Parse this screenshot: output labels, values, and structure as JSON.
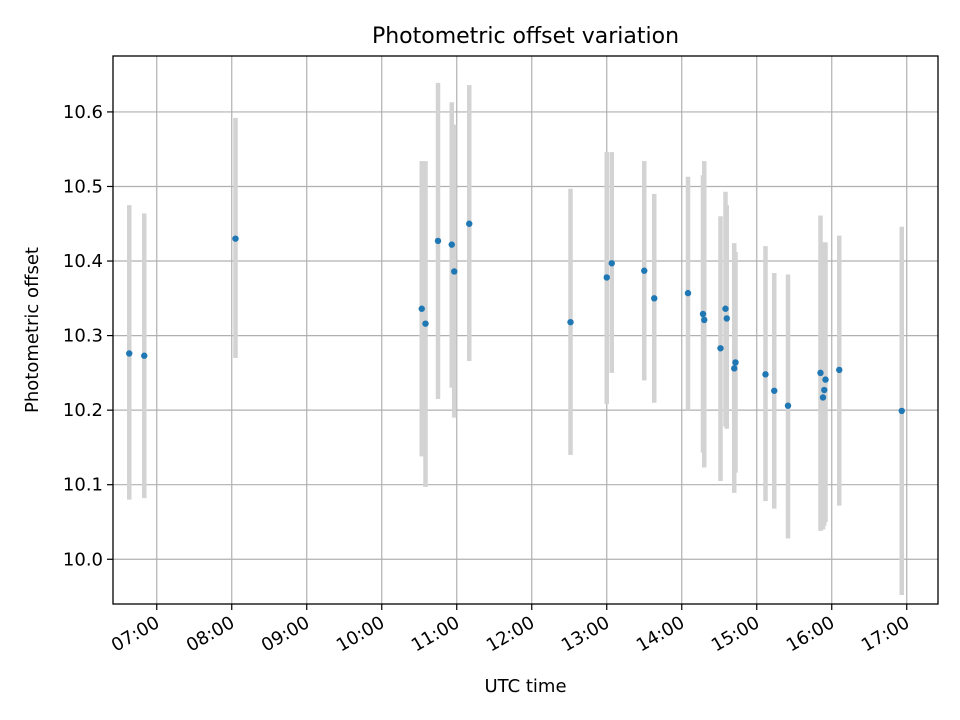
{
  "chart_data": {
    "type": "scatter",
    "title": "Photometric offset variation",
    "xlabel": "UTC time",
    "ylabel": "Photometric offset",
    "x_axis": "time",
    "xlim": [
      "06:25",
      "17:25"
    ],
    "ylim": [
      9.94,
      10.675
    ],
    "xticks": [
      "07:00",
      "08:00",
      "09:00",
      "10:00",
      "11:00",
      "12:00",
      "13:00",
      "14:00",
      "15:00",
      "16:00",
      "17:00"
    ],
    "yticks": [
      10.0,
      10.1,
      10.2,
      10.3,
      10.4,
      10.5,
      10.6
    ],
    "ytick_labels": [
      "10.0",
      "10.1",
      "10.2",
      "10.3",
      "10.4",
      "10.5",
      "10.6"
    ],
    "grid": true,
    "marker_color": "#1f77b4",
    "errorbar_color": "#d3d3d3",
    "points": [
      {
        "time": "06:38",
        "y": 10.276,
        "lo": 10.08,
        "hi": 10.475
      },
      {
        "time": "06:50",
        "y": 10.273,
        "lo": 10.082,
        "hi": 10.464
      },
      {
        "time": "08:03",
        "y": 10.43,
        "lo": 10.27,
        "hi": 10.592
      },
      {
        "time": "10:32",
        "y": 10.336,
        "lo": 10.138,
        "hi": 10.534
      },
      {
        "time": "10:35",
        "y": 10.316,
        "lo": 10.097,
        "hi": 10.534
      },
      {
        "time": "10:45",
        "y": 10.427,
        "lo": 10.215,
        "hi": 10.639
      },
      {
        "time": "10:56",
        "y": 10.422,
        "lo": 10.23,
        "hi": 10.613
      },
      {
        "time": "10:58",
        "y": 10.386,
        "lo": 10.19,
        "hi": 10.583
      },
      {
        "time": "11:10",
        "y": 10.45,
        "lo": 10.266,
        "hi": 10.636
      },
      {
        "time": "12:31",
        "y": 10.318,
        "lo": 10.14,
        "hi": 10.497
      },
      {
        "time": "13:00",
        "y": 10.378,
        "lo": 10.208,
        "hi": 10.546
      },
      {
        "time": "13:04",
        "y": 10.397,
        "lo": 10.25,
        "hi": 10.546
      },
      {
        "time": "13:30",
        "y": 10.387,
        "lo": 10.24,
        "hi": 10.534
      },
      {
        "time": "13:38",
        "y": 10.35,
        "lo": 10.21,
        "hi": 10.49
      },
      {
        "time": "14:05",
        "y": 10.357,
        "lo": 10.2,
        "hi": 10.513
      },
      {
        "time": "14:17",
        "y": 10.329,
        "lo": 10.143,
        "hi": 10.515
      },
      {
        "time": "14:18",
        "y": 10.321,
        "lo": 10.123,
        "hi": 10.534
      },
      {
        "time": "14:31",
        "y": 10.283,
        "lo": 10.105,
        "hi": 10.46
      },
      {
        "time": "14:35",
        "y": 10.336,
        "lo": 10.178,
        "hi": 10.493
      },
      {
        "time": "14:36",
        "y": 10.323,
        "lo": 10.175,
        "hi": 10.475
      },
      {
        "time": "14:42",
        "y": 10.256,
        "lo": 10.089,
        "hi": 10.424
      },
      {
        "time": "14:43",
        "y": 10.264,
        "lo": 10.116,
        "hi": 10.412
      },
      {
        "time": "15:07",
        "y": 10.248,
        "lo": 10.078,
        "hi": 10.42
      },
      {
        "time": "15:14",
        "y": 10.226,
        "lo": 10.068,
        "hi": 10.384
      },
      {
        "time": "15:25",
        "y": 10.206,
        "lo": 10.028,
        "hi": 10.382
      },
      {
        "time": "15:51",
        "y": 10.25,
        "lo": 10.038,
        "hi": 10.461
      },
      {
        "time": "15:53",
        "y": 10.217,
        "lo": 10.04,
        "hi": 10.408
      },
      {
        "time": "15:54",
        "y": 10.227,
        "lo": 10.045,
        "hi": 10.425
      },
      {
        "time": "15:55",
        "y": 10.241,
        "lo": 10.05,
        "hi": 10.425
      },
      {
        "time": "16:06",
        "y": 10.254,
        "lo": 10.072,
        "hi": 10.434
      },
      {
        "time": "16:56",
        "y": 10.199,
        "lo": 9.952,
        "hi": 10.446
      }
    ]
  }
}
